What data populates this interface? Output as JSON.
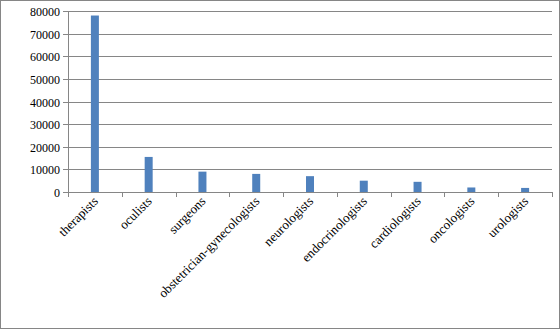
{
  "chart_data": {
    "type": "bar",
    "categories": [
      "therapists",
      "oculists",
      "surgeons",
      "obstetrician-gynecologists",
      "neurologists",
      "endocrinologists",
      "cardiologists",
      "oncologists",
      "urologists"
    ],
    "values": [
      78000,
      15500,
      9000,
      8000,
      7000,
      5000,
      4500,
      2000,
      1800
    ],
    "color": "#4f81bd",
    "ylim": [
      0,
      80000
    ],
    "yticks": [
      0,
      10000,
      20000,
      30000,
      40000,
      50000,
      60000,
      70000,
      80000
    ],
    "grid": true
  }
}
